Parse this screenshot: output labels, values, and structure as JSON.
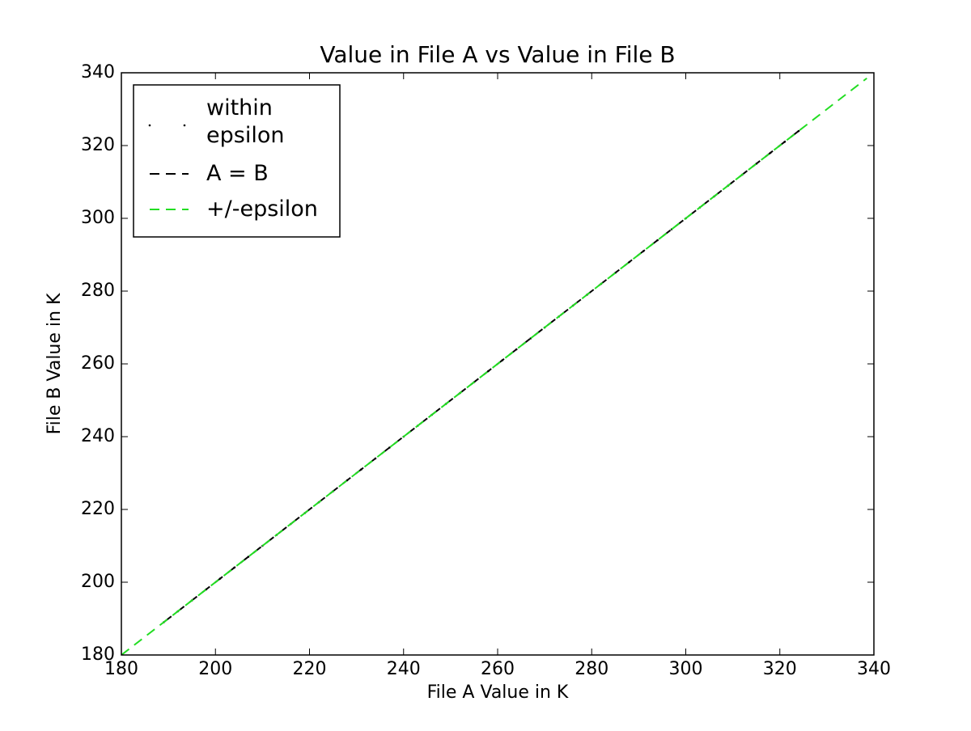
{
  "chart_data": {
    "type": "scatter",
    "title": "Value in File A vs Value in File B",
    "xlabel": "File A Value in K",
    "ylabel": "File B Value in K",
    "xlim": [
      180,
      340
    ],
    "ylim": [
      180,
      340
    ],
    "xticks": [
      180,
      200,
      220,
      240,
      260,
      280,
      300,
      320,
      340
    ],
    "yticks": [
      180,
      200,
      220,
      240,
      260,
      280,
      300,
      320,
      340
    ],
    "legend": "upper left",
    "series": [
      {
        "name": "within\nepsilon",
        "color": "#000000",
        "kind": "points",
        "x": [
          189,
          192,
          195,
          198,
          201,
          204,
          207,
          210,
          213,
          216,
          219,
          222,
          225,
          228,
          231,
          234,
          237,
          240,
          243,
          246,
          249,
          252,
          255,
          258,
          261,
          264,
          267,
          270,
          273,
          276,
          279,
          282,
          285,
          288,
          291,
          294,
          297,
          300,
          303,
          306,
          309,
          312,
          315,
          318,
          321,
          324
        ],
        "values": [
          189,
          192,
          195,
          198,
          201,
          204,
          207,
          210,
          213,
          216,
          219,
          222,
          225,
          228,
          231,
          234,
          237,
          240,
          243,
          246,
          249,
          252,
          255,
          258,
          261,
          264,
          267,
          270,
          273,
          276,
          279,
          282,
          285,
          288,
          291,
          294,
          297,
          300,
          303,
          306,
          309,
          312,
          315,
          318,
          321,
          324
        ]
      },
      {
        "name": "A = B",
        "color": "#000000",
        "kind": "dashed",
        "x": [
          189,
          324
        ],
        "values": [
          189,
          324
        ]
      },
      {
        "name": "+/-epsilon",
        "color": "#22dd22",
        "kind": "dashed",
        "x": [
          180,
          338.5
        ],
        "values": [
          180,
          338.5
        ]
      }
    ]
  }
}
